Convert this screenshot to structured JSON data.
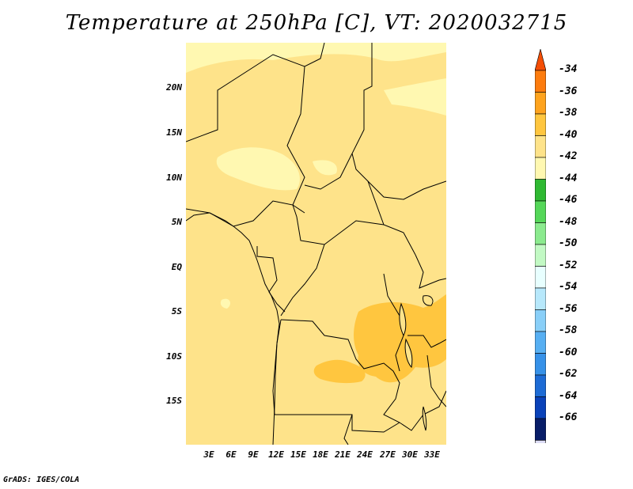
{
  "title": "Temperature at 250hPa [C], VT: 2020032715",
  "credit": "GrADS: IGES/COLA",
  "map": {
    "lat_labels": [
      "20N",
      "15N",
      "10N",
      "5N",
      "EQ",
      "5S",
      "10S",
      "15S"
    ],
    "lon_labels": [
      "3E",
      "6E",
      "9E",
      "12E",
      "15E",
      "18E",
      "21E",
      "24E",
      "27E",
      "30E",
      "33E"
    ],
    "base_color": "#FEE38A"
  },
  "colorbar": {
    "labels": [
      "-34",
      "-36",
      "-38",
      "-40",
      "-42",
      "-44",
      "-46",
      "-48",
      "-50",
      "-52",
      "-54",
      "-56",
      "-58",
      "-60",
      "-62",
      "-64",
      "-66"
    ],
    "colors": [
      "#F44E06",
      "#FD7C0E",
      "#FEA31E",
      "#FFC63F",
      "#FEE38A",
      "#FFF8B1",
      "#2FB932",
      "#55D759",
      "#8BEA8E",
      "#C2F9C4",
      "#E8FFFF",
      "#B7E8FB",
      "#89CFF8",
      "#57AFF2",
      "#3691E8",
      "#1D6BD5",
      "#0A42B9",
      "#081D68",
      "#DCDCF5"
    ]
  }
}
